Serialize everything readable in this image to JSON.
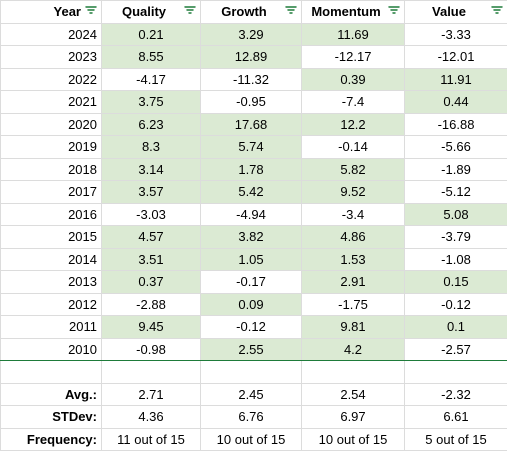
{
  "headers": [
    "Year",
    "Quality",
    "Growth",
    "Momentum",
    "Value"
  ],
  "rows": [
    {
      "year": "2024",
      "values": [
        "0.21",
        "3.29",
        "11.69",
        "-3.33"
      ]
    },
    {
      "year": "2023",
      "values": [
        "8.55",
        "12.89",
        "-12.17",
        "-12.01"
      ]
    },
    {
      "year": "2022",
      "values": [
        "-4.17",
        "-11.32",
        "0.39",
        "11.91"
      ]
    },
    {
      "year": "2021",
      "values": [
        "3.75",
        "-0.95",
        "-7.4",
        "0.44"
      ]
    },
    {
      "year": "2020",
      "values": [
        "6.23",
        "17.68",
        "12.2",
        "-16.88"
      ]
    },
    {
      "year": "2019",
      "values": [
        "8.3",
        "5.74",
        "-0.14",
        "-5.66"
      ]
    },
    {
      "year": "2018",
      "values": [
        "3.14",
        "1.78",
        "5.82",
        "-1.89"
      ]
    },
    {
      "year": "2017",
      "values": [
        "3.57",
        "5.42",
        "9.52",
        "-5.12"
      ]
    },
    {
      "year": "2016",
      "values": [
        "-3.03",
        "-4.94",
        "-3.4",
        "5.08"
      ]
    },
    {
      "year": "2015",
      "values": [
        "4.57",
        "3.82",
        "4.86",
        "-3.79"
      ]
    },
    {
      "year": "2014",
      "values": [
        "3.51",
        "1.05",
        "1.53",
        "-1.08"
      ]
    },
    {
      "year": "2013",
      "values": [
        "0.37",
        "-0.17",
        "2.91",
        "0.15"
      ]
    },
    {
      "year": "2012",
      "values": [
        "-2.88",
        "0.09",
        "-1.75",
        "-0.12"
      ]
    },
    {
      "year": "2011",
      "values": [
        "9.45",
        "-0.12",
        "9.81",
        "0.1"
      ]
    },
    {
      "year": "2010",
      "values": [
        "-0.98",
        "2.55",
        "4.2",
        "-2.57"
      ]
    }
  ],
  "summary": [
    {
      "label": "Avg.:",
      "values": [
        "2.71",
        "2.45",
        "2.54",
        "-2.32"
      ]
    },
    {
      "label": "STDev:",
      "values": [
        "4.36",
        "6.76",
        "6.97",
        "6.61"
      ]
    },
    {
      "label": "Frequency:",
      "values": [
        "11 out of 15",
        "10 out of 15",
        "10 out of 15",
        "5 out of 15"
      ]
    }
  ],
  "colors": {
    "positive_fill": "#dbead3",
    "filter_icon": "#1e7b3a",
    "divider": "#1e7b3a",
    "grid": "#dcdcdc"
  },
  "icons": {
    "filter": "filter-icon"
  }
}
